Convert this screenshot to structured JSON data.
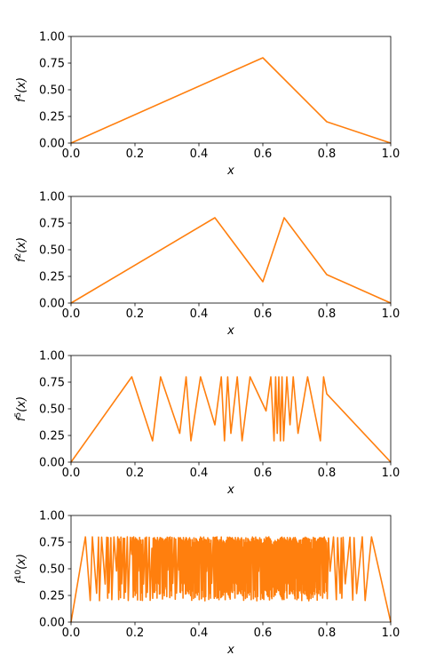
{
  "chart_data": [
    {
      "type": "line",
      "ylabel_base": "f",
      "ylabel_exp": "1",
      "ylabel_arg": "(x)",
      "xlabel": "x",
      "xlim": [
        0,
        1
      ],
      "ylim": [
        0,
        1
      ],
      "xticks": [
        "0.0",
        "0.2",
        "0.4",
        "0.6",
        "0.8",
        "1.0"
      ],
      "yticks": [
        "0.00",
        "0.25",
        "0.50",
        "0.75",
        "1.00"
      ],
      "color": "#ff7f0e",
      "series": [
        {
          "x": [
            0.0,
            0.6,
            0.8,
            1.0
          ],
          "y": [
            0.0,
            0.8,
            0.2,
            0.0
          ]
        }
      ]
    },
    {
      "type": "line",
      "ylabel_base": "f",
      "ylabel_exp": "2",
      "ylabel_arg": "(x)",
      "xlabel": "x",
      "xlim": [
        0,
        1
      ],
      "ylim": [
        0,
        1
      ],
      "xticks": [
        "0.0",
        "0.2",
        "0.4",
        "0.6",
        "0.8",
        "1.0"
      ],
      "yticks": [
        "0.00",
        "0.25",
        "0.50",
        "0.75",
        "1.00"
      ],
      "color": "#ff7f0e",
      "series": [
        {
          "x": [
            0.0,
            0.45,
            0.6,
            0.6667,
            0.8,
            1.0
          ],
          "y": [
            0.0,
            0.8,
            0.2,
            0.8,
            0.2667,
            0.0
          ]
        }
      ]
    },
    {
      "type": "line",
      "ylabel_base": "f",
      "ylabel_exp": "5",
      "ylabel_arg": "(x)",
      "xlabel": "x",
      "xlim": [
        0,
        1
      ],
      "ylim": [
        0,
        1
      ],
      "xticks": [
        "0.0",
        "0.2",
        "0.4",
        "0.6",
        "0.8",
        "1.0"
      ],
      "yticks": [
        "0.00",
        "0.25",
        "0.50",
        "0.75",
        "1.00"
      ],
      "color": "#ff7f0e",
      "series": [
        {
          "x": [
            0.0,
            0.19,
            0.255,
            0.28,
            0.34,
            0.36,
            0.375,
            0.405,
            0.45,
            0.47,
            0.48,
            0.49,
            0.5,
            0.52,
            0.535,
            0.56,
            0.61,
            0.625,
            0.635,
            0.64,
            0.645,
            0.65,
            0.655,
            0.66,
            0.665,
            0.675,
            0.685,
            0.695,
            0.71,
            0.74,
            0.78,
            0.79,
            0.8,
            1.0
          ],
          "y": [
            0.0,
            0.8,
            0.2,
            0.8,
            0.27,
            0.8,
            0.2,
            0.8,
            0.35,
            0.8,
            0.2,
            0.8,
            0.27,
            0.8,
            0.2,
            0.8,
            0.48,
            0.8,
            0.2,
            0.8,
            0.27,
            0.8,
            0.2,
            0.8,
            0.2,
            0.8,
            0.35,
            0.8,
            0.27,
            0.8,
            0.2,
            0.8,
            0.64,
            0.0
          ]
        }
      ]
    },
    {
      "type": "line",
      "ylabel_base": "f",
      "ylabel_exp": "10",
      "ylabel_arg": "(x)",
      "xlabel": "x",
      "xlim": [
        0,
        1
      ],
      "ylim": [
        0,
        1
      ],
      "xticks": [
        "0.0",
        "0.2",
        "0.4",
        "0.6",
        "0.8",
        "1.0"
      ],
      "yticks": [
        "0.00",
        "0.25",
        "0.50",
        "0.75",
        "1.00"
      ],
      "color": "#ff7f0e",
      "generator": {
        "map": "piecewise-linear",
        "iterations": 10,
        "breakpoints_x": [
          0.0,
          0.6,
          0.8,
          1.0
        ],
        "breakpoints_y": [
          0.0,
          0.8,
          0.2,
          0.0
        ]
      }
    }
  ]
}
